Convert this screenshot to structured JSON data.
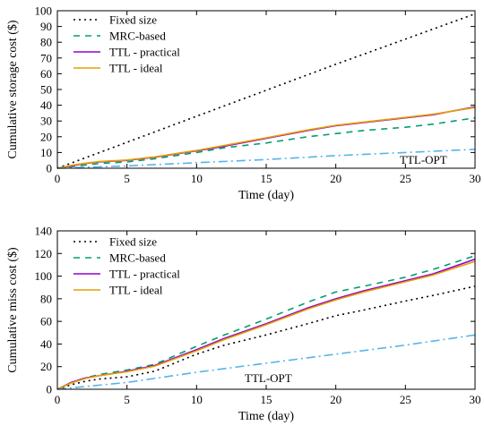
{
  "chart_data": [
    {
      "type": "line",
      "xlabel": "Time (day)",
      "ylabel": "Cumulative storage cost ($)",
      "xlim": [
        0,
        30
      ],
      "ylim": [
        0,
        100
      ],
      "xticks": [
        0,
        5,
        10,
        15,
        20,
        25,
        30
      ],
      "yticks": [
        0,
        10,
        20,
        30,
        40,
        50,
        60,
        70,
        80,
        90,
        100
      ],
      "grid": false,
      "legend_position": "top-left",
      "annotation": "TTL-OPT",
      "series": [
        {
          "name": "Fixed size",
          "color": "#000000",
          "dash": "dot",
          "x": [
            0,
            5,
            10,
            15,
            20,
            25,
            30
          ],
          "y": [
            0,
            16.5,
            33,
            49.5,
            66,
            82,
            98
          ]
        },
        {
          "name": "MRC-based",
          "color": "#009e73",
          "dash": "dash",
          "x": [
            0,
            1,
            2,
            3,
            5,
            7,
            10,
            12,
            15,
            18,
            20,
            22,
            25,
            27,
            30
          ],
          "y": [
            0,
            1,
            2,
            3,
            4,
            6,
            10,
            13,
            16,
            20,
            22,
            24,
            26,
            28,
            32
          ]
        },
        {
          "name": "TTL - practical",
          "color": "#9400d3",
          "dash": "solid",
          "x": [
            0,
            1,
            2,
            3,
            5,
            7,
            10,
            12,
            15,
            18,
            20,
            22,
            25,
            27,
            30
          ],
          "y": [
            0,
            1.5,
            3,
            4,
            5,
            7,
            11,
            14,
            19,
            24,
            27,
            29,
            32,
            34,
            39
          ]
        },
        {
          "name": "TTL - ideal",
          "color": "#e69f00",
          "dash": "solid",
          "x": [
            0,
            1,
            2,
            3,
            5,
            7,
            10,
            12,
            15,
            18,
            20,
            22,
            25,
            27,
            30
          ],
          "y": [
            0,
            1.8,
            3.2,
            4.2,
            5.2,
            7.2,
            11.3,
            14.5,
            19.3,
            24.3,
            27.3,
            29.3,
            32.3,
            34.3,
            38.5
          ]
        },
        {
          "name": "TTL-OPT",
          "color": "#56b4e9",
          "dash": "dashdot",
          "x": [
            0,
            5,
            10,
            15,
            20,
            25,
            30
          ],
          "y": [
            0,
            1.5,
            3.5,
            5.5,
            8,
            10,
            12
          ]
        }
      ]
    },
    {
      "type": "line",
      "xlabel": "Time (day)",
      "ylabel": "Cumulative miss cost ($)",
      "xlim": [
        0,
        30
      ],
      "ylim": [
        0,
        140
      ],
      "xticks": [
        0,
        5,
        10,
        15,
        20,
        25,
        30
      ],
      "yticks": [
        0,
        20,
        40,
        60,
        80,
        100,
        120,
        140
      ],
      "grid": false,
      "legend_position": "top-left",
      "annotation": "TTL-OPT",
      "series": [
        {
          "name": "Fixed size",
          "color": "#000000",
          "dash": "dot",
          "x": [
            0,
            1,
            2,
            3,
            5,
            7,
            10,
            12,
            15,
            18,
            20,
            22,
            25,
            27,
            30
          ],
          "y": [
            0,
            4,
            7,
            9,
            11,
            16,
            31,
            39,
            48,
            58,
            65,
            70,
            78,
            83,
            91
          ]
        },
        {
          "name": "MRC-based",
          "color": "#009e73",
          "dash": "dash",
          "x": [
            0,
            1,
            2,
            3,
            5,
            7,
            10,
            12,
            15,
            18,
            20,
            22,
            25,
            27,
            30
          ],
          "y": [
            0,
            6,
            10,
            13,
            17,
            22,
            38,
            48,
            62,
            77,
            86,
            91,
            99,
            106,
            118
          ]
        },
        {
          "name": "TTL - practical",
          "color": "#9400d3",
          "dash": "solid",
          "x": [
            0,
            1,
            2,
            3,
            5,
            7,
            10,
            12,
            15,
            18,
            20,
            22,
            25,
            27,
            30
          ],
          "y": [
            0,
            6,
            10,
            12,
            16,
            21,
            35,
            45,
            58,
            72,
            80,
            87,
            96,
            102,
            115
          ]
        },
        {
          "name": "TTL - ideal",
          "color": "#e69f00",
          "dash": "solid",
          "x": [
            0,
            1,
            2,
            3,
            5,
            7,
            10,
            12,
            15,
            18,
            20,
            22,
            25,
            27,
            30
          ],
          "y": [
            0,
            5.5,
            9.5,
            12,
            15.5,
            20.5,
            34,
            44,
            57,
            71,
            79,
            86,
            95,
            101,
            113
          ]
        },
        {
          "name": "TTL-OPT",
          "color": "#56b4e9",
          "dash": "dashdot",
          "x": [
            0,
            5,
            10,
            15,
            20,
            25,
            30
          ],
          "y": [
            0,
            6,
            15,
            23,
            31,
            39,
            48
          ]
        }
      ]
    }
  ]
}
